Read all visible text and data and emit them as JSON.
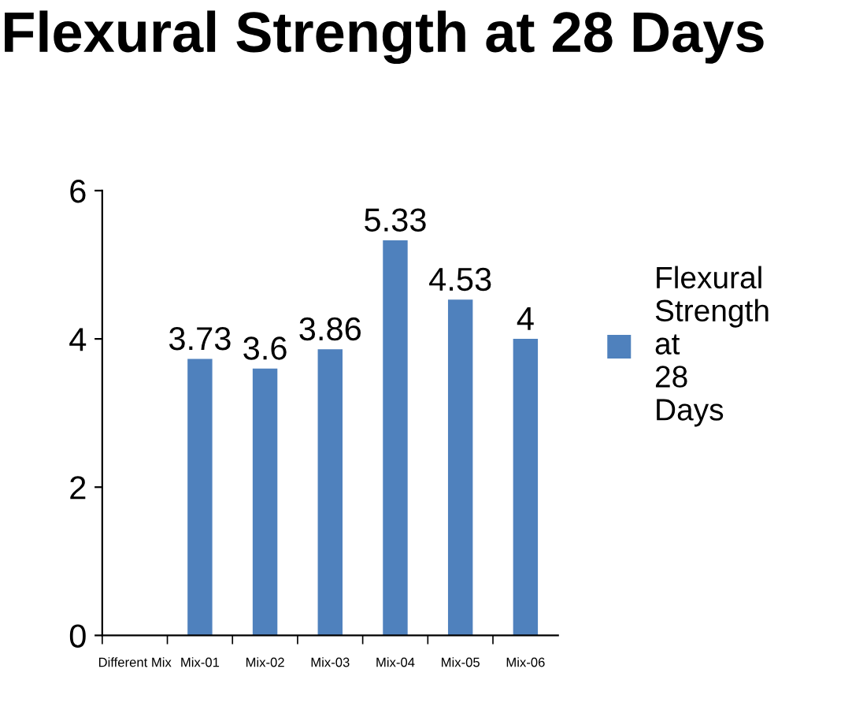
{
  "chart_data": {
    "type": "bar",
    "title": "Flexural Strength at 28 Days",
    "categories": [
      "Different Mix",
      "Mix-01",
      "Mix-02",
      "Mix-03",
      "Mix-04",
      "Mix-05",
      "Mix-06"
    ],
    "series": [
      {
        "name": "Flexural Strength at 28 Days",
        "color": "#4f81bd",
        "values": [
          null,
          3.73,
          3.6,
          3.86,
          5.33,
          4.53,
          4
        ]
      }
    ],
    "ylim": [
      0,
      6
    ],
    "yticks": [
      0,
      2,
      4,
      6
    ],
    "data_labels": true,
    "legend": "right",
    "grid": false
  }
}
